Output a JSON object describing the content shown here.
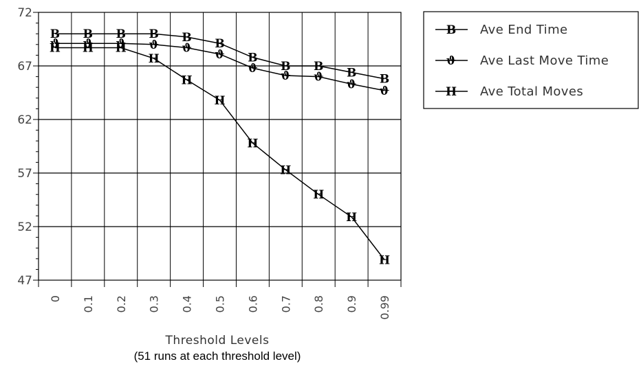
{
  "chart_data": {
    "type": "line",
    "title": "",
    "xlabel": "Threshold Levels",
    "xlabel_sub": "(51 runs at each threshold level)",
    "ylabel": "",
    "categories": [
      "0",
      "0.1",
      "0.2",
      "0.3",
      "0.4",
      "0.5",
      "0.6",
      "0.7",
      "0.8",
      "0.9",
      "0.99"
    ],
    "ylim": [
      47,
      72
    ],
    "yticks": [
      "47",
      "52",
      "57",
      "62",
      "67",
      "72"
    ],
    "grid": true,
    "legend_position": "right",
    "series": [
      {
        "name": "Ave End Time",
        "marker": "B",
        "values": [
          70.0,
          70.0,
          70.0,
          70.0,
          69.7,
          69.1,
          67.8,
          67.0,
          67.0,
          66.4,
          65.8
        ]
      },
      {
        "name": "Ave Last Move Time",
        "marker": "ϑ",
        "values": [
          69.1,
          69.1,
          69.1,
          69.0,
          68.7,
          68.1,
          66.8,
          66.1,
          66.0,
          65.3,
          64.7
        ]
      },
      {
        "name": "Ave Total Moves",
        "marker": "H",
        "values": [
          68.7,
          68.7,
          68.7,
          67.7,
          65.7,
          63.8,
          59.8,
          57.3,
          55.0,
          52.9,
          48.9
        ]
      }
    ]
  }
}
